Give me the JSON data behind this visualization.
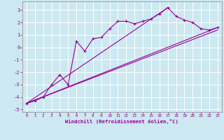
{
  "xlabel": "Windchill (Refroidissement éolien,°C)",
  "background_color": "#cce8f0",
  "grid_color": "#ffffff",
  "line_color": "#990099",
  "x_ticks": [
    0,
    1,
    2,
    3,
    4,
    5,
    6,
    7,
    8,
    9,
    10,
    11,
    12,
    13,
    14,
    15,
    16,
    17,
    18,
    19,
    20,
    21,
    22,
    23
  ],
  "y_ticks": [
    -5,
    -4,
    -3,
    -2,
    -1,
    0,
    1,
    2,
    3
  ],
  "xlim": [
    -0.5,
    23.5
  ],
  "ylim": [
    -5.2,
    3.7
  ],
  "main_line": {
    "x": [
      0,
      1,
      2,
      3,
      4,
      5,
      6,
      7,
      8,
      9,
      10,
      11,
      12,
      13,
      14,
      15,
      16,
      17,
      18,
      19,
      20,
      21,
      22,
      23
    ],
    "y": [
      -4.5,
      -4.3,
      -4.0,
      -3.0,
      -2.2,
      -3.0,
      0.5,
      -0.3,
      0.7,
      0.8,
      1.5,
      2.1,
      2.1,
      1.9,
      2.1,
      2.3,
      2.7,
      3.2,
      2.5,
      2.2,
      2.0,
      1.5,
      1.4,
      1.6
    ]
  },
  "ref_lines": [
    {
      "x": [
        0,
        23
      ],
      "y": [
        -4.5,
        1.6
      ]
    },
    {
      "x": [
        0,
        23
      ],
      "y": [
        -4.5,
        1.4
      ]
    },
    {
      "x": [
        0,
        17
      ],
      "y": [
        -4.5,
        3.2
      ]
    }
  ]
}
